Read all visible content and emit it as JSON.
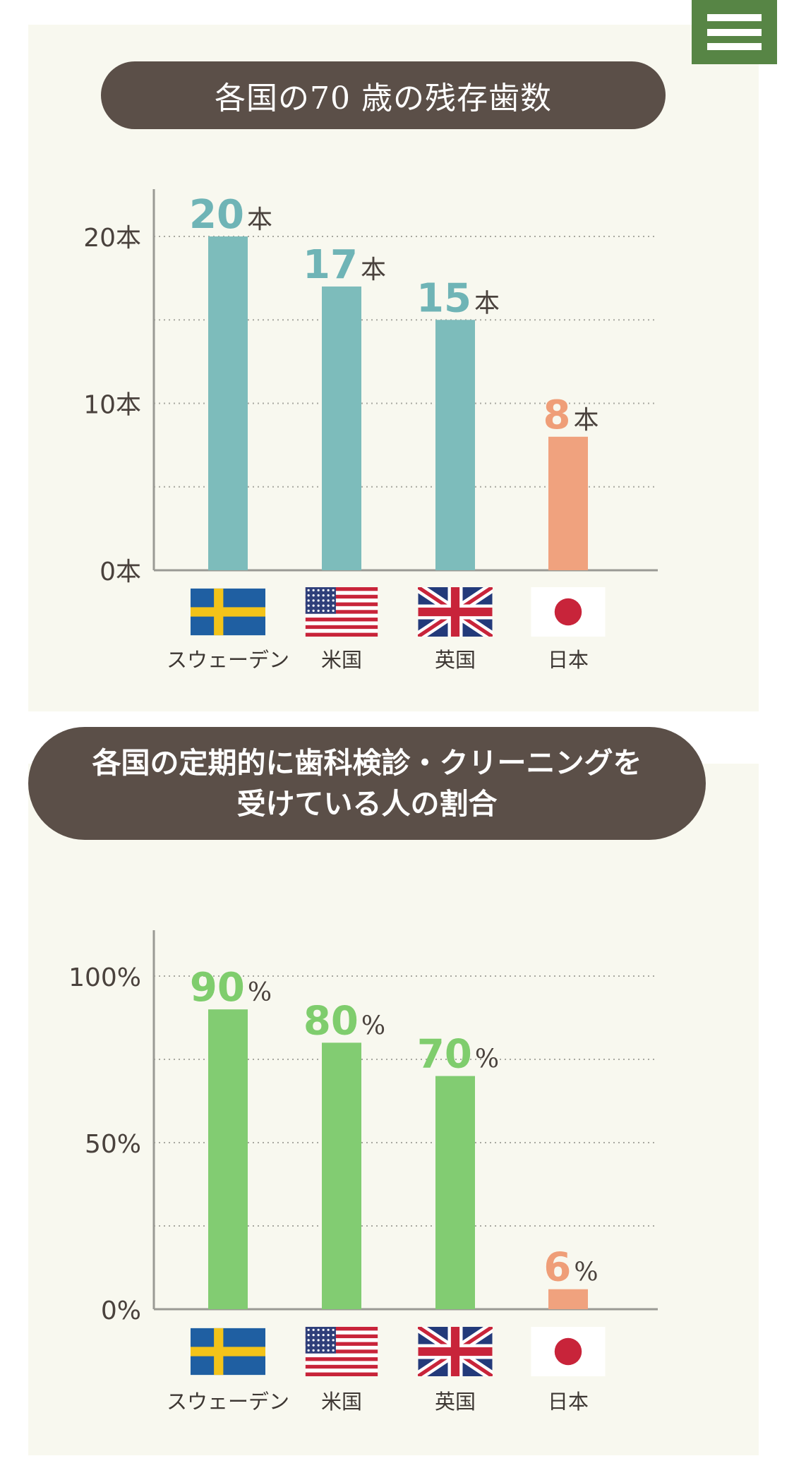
{
  "menu": {
    "icon": "hamburger-menu-icon",
    "color": "#578545"
  },
  "chart_data": [
    {
      "type": "bar",
      "title": "各国の70 歳の残存歯数",
      "categories": [
        "スウェーデン",
        "米国",
        "英国",
        "日本"
      ],
      "values": [
        20,
        17,
        15,
        8
      ],
      "value_labels": [
        "20",
        "17",
        "15",
        "8"
      ],
      "unit": "本",
      "ylim": [
        0,
        20
      ],
      "yticks": [
        {
          "value": 0,
          "label": "0本"
        },
        {
          "value": 10,
          "label": "10本"
        },
        {
          "value": 20,
          "label": "20本"
        }
      ],
      "bar_colors": [
        "#7dbcbb",
        "#7dbcbb",
        "#7dbcbb",
        "#f0a27e"
      ],
      "label_colors": [
        "#6fb4b6",
        "#6fb4b6",
        "#6fb4b6",
        "#ef9e78"
      ],
      "grid": "dotted horizontal",
      "flags": [
        "sweden-flag-icon",
        "usa-flag-icon",
        "uk-flag-icon",
        "japan-flag-icon"
      ]
    },
    {
      "type": "bar",
      "title_lines": [
        "各国の定期的に歯科検診・クリーニングを",
        "受けている人の割合"
      ],
      "categories": [
        "スウェーデン",
        "米国",
        "英国",
        "日本"
      ],
      "values": [
        90,
        80,
        70,
        6
      ],
      "value_labels": [
        "90",
        "80",
        "70",
        "6"
      ],
      "unit": "%",
      "ylim": [
        0,
        100
      ],
      "yticks": [
        {
          "value": 0,
          "label": "0%"
        },
        {
          "value": 50,
          "label": "50%"
        },
        {
          "value": 100,
          "label": "100%"
        }
      ],
      "bar_colors": [
        "#82cc72",
        "#82cc72",
        "#82cc72",
        "#f0a27e"
      ],
      "label_colors": [
        "#7fcd6d",
        "#7fcd6d",
        "#7fcd6d",
        "#ef9e78"
      ],
      "grid": "dotted horizontal",
      "flags": [
        "sweden-flag-icon",
        "usa-flag-icon",
        "uk-flag-icon",
        "japan-flag-icon"
      ]
    }
  ]
}
